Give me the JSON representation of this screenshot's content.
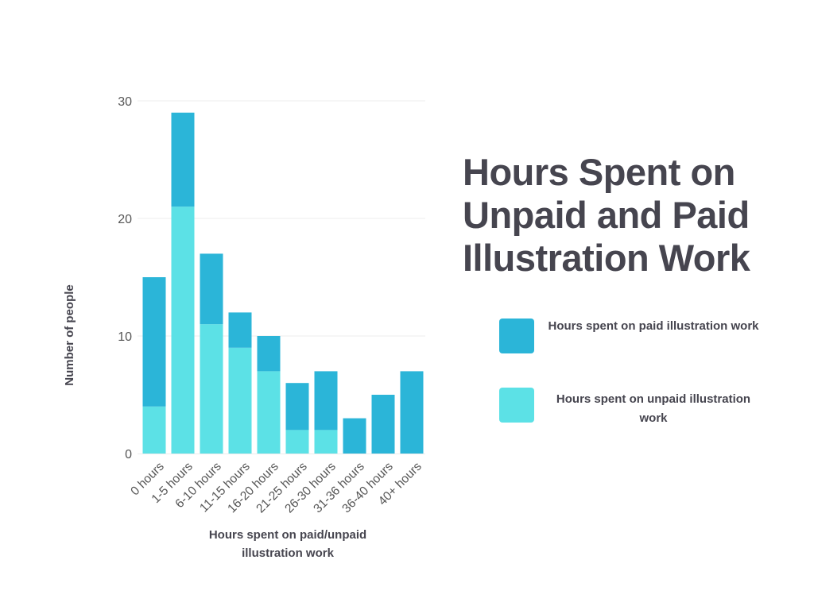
{
  "chart_data": {
    "type": "bar",
    "stacked": true,
    "title_lines": [
      "Hours Spent on",
      "Unpaid and Paid",
      "Illustration Work"
    ],
    "xlabel_lines": [
      "Hours spent on paid/unpaid",
      "illustration work"
    ],
    "ylabel": "Number of people",
    "ylim": [
      0,
      30
    ],
    "yticks": [
      "0",
      "10",
      "20",
      "30"
    ],
    "grid": true,
    "legend_position": "right",
    "categories": [
      "0 hours",
      "1-5 hours",
      "6-10 hours",
      "11-15 hours",
      "16-20 hours",
      "21-25 hours",
      "26-30 hours",
      "31-36 hours",
      "36-40 hours",
      "40+ hours"
    ],
    "series": [
      {
        "name": "Hours spent on unpaid illustration work",
        "color": "#5ce1e6",
        "values": [
          4,
          21,
          11,
          9,
          7,
          2,
          2,
          0,
          0,
          0
        ]
      },
      {
        "name": "Hours spent on paid illustration work",
        "color": "#2bb5d8",
        "values": [
          11,
          8,
          6,
          3,
          3,
          4,
          5,
          3,
          5,
          7
        ]
      }
    ]
  },
  "legend": {
    "paid_lines": [
      "Hours spent on paid illustration work"
    ],
    "unpaid_lines": [
      "Hours spent on unpaid illustration",
      "work"
    ]
  }
}
